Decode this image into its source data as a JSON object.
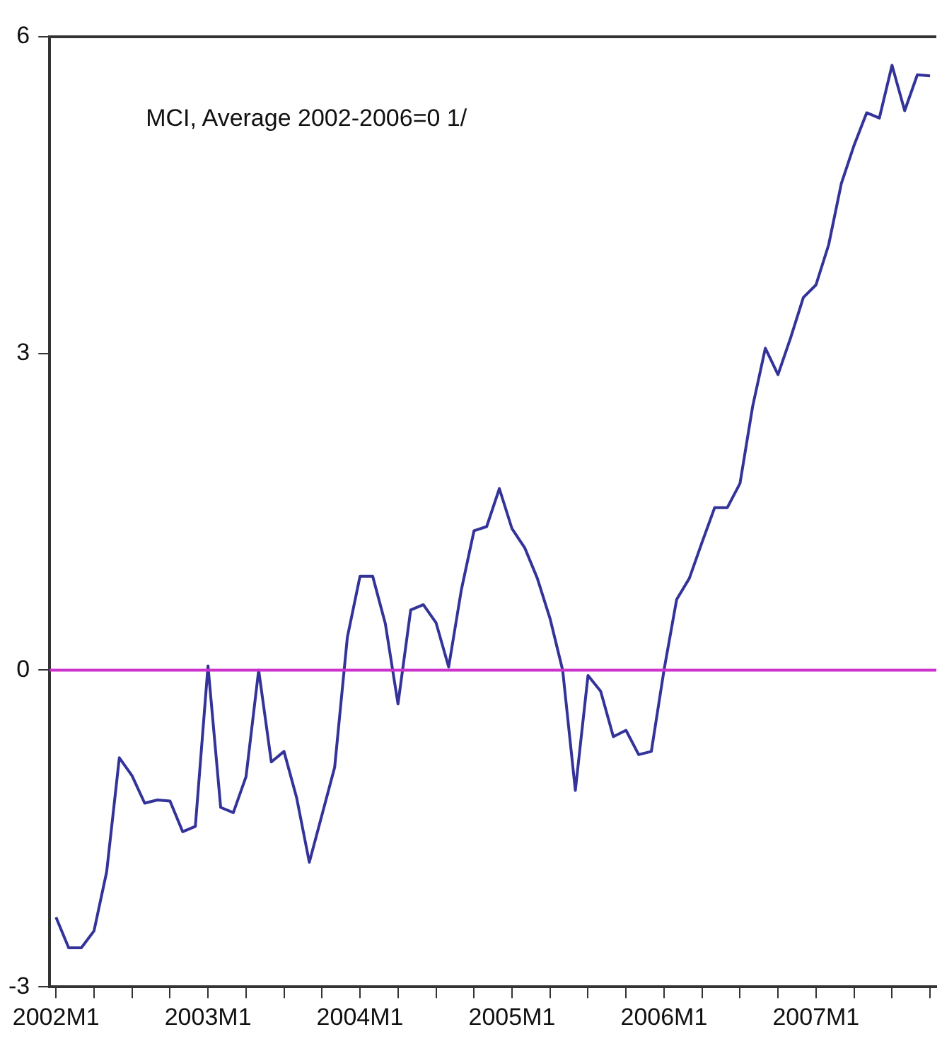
{
  "chart_data": {
    "type": "line",
    "categories": [
      "2002M1",
      null,
      null,
      null,
      null,
      null,
      null,
      null,
      null,
      null,
      null,
      null,
      "2003M1",
      null,
      null,
      null,
      null,
      null,
      null,
      null,
      null,
      null,
      null,
      null,
      "2004M1",
      null,
      null,
      null,
      null,
      null,
      null,
      null,
      null,
      null,
      null,
      null,
      "2005M1",
      null,
      null,
      null,
      null,
      null,
      null,
      null,
      null,
      null,
      null,
      null,
      "2006M1",
      null,
      null,
      null,
      null,
      null,
      null,
      null,
      null,
      null,
      null,
      null,
      "2007M1",
      null,
      null,
      null,
      null,
      null,
      null,
      null,
      null,
      null
    ],
    "series": [
      {
        "color": "#333399",
        "values": [
          -2.34,
          -2.63,
          -2.63,
          -2.47,
          -1.91,
          -0.83,
          -1.0,
          -1.26,
          -1.23,
          -1.24,
          -1.53,
          -1.48,
          0.04,
          -1.3,
          -1.35,
          -1.01,
          0.0,
          -0.87,
          -0.77,
          -1.21,
          -1.82,
          -1.37,
          -0.92,
          0.31,
          0.89,
          0.89,
          0.44,
          -0.32,
          0.57,
          0.62,
          0.45,
          0.03,
          0.76,
          1.32,
          1.36,
          1.72,
          1.34,
          1.16,
          0.87,
          0.49,
          0.0,
          -1.14,
          -0.05,
          -0.2,
          -0.63,
          -0.57,
          -0.8,
          -0.77,
          0.0,
          0.67,
          0.87,
          1.21,
          1.54,
          1.54,
          1.77,
          2.5,
          3.05,
          2.8,
          3.15,
          3.53,
          3.65,
          4.03,
          4.61,
          4.97,
          5.28,
          5.23,
          5.73,
          5.3,
          5.64,
          5.63
        ]
      }
    ],
    "ylim": [
      -3,
      6
    ],
    "yticks": [
      -3,
      0,
      3,
      6
    ],
    "grid": false,
    "legend": false,
    "marker": "none",
    "line_style": "solid",
    "ref_lines": [
      {
        "axis": "y",
        "value": 0,
        "color": "#cc33cc"
      }
    ],
    "annotations": [
      "MCI, Average 2002-2006=0 1/"
    ]
  }
}
